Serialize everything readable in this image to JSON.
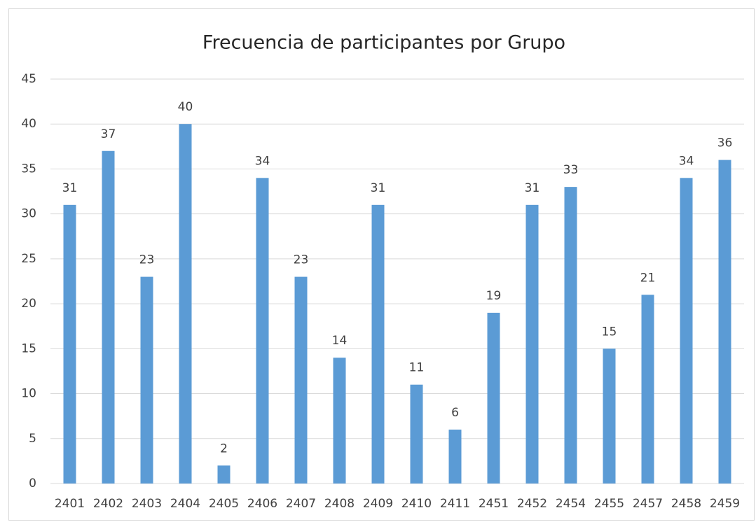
{
  "chart_data": {
    "type": "bar",
    "title": "Frecuencia de participantes por Grupo",
    "categories": [
      "2401",
      "2402",
      "2403",
      "2404",
      "2405",
      "2406",
      "2407",
      "2408",
      "2409",
      "2410",
      "2411",
      "2451",
      "2452",
      "2454",
      "2455",
      "2457",
      "2458",
      "2459"
    ],
    "values": [
      31,
      37,
      23,
      40,
      2,
      34,
      23,
      14,
      31,
      11,
      6,
      19,
      31,
      33,
      15,
      21,
      34,
      36
    ],
    "color": "#5b9bd5",
    "ylim": [
      0,
      45
    ],
    "yticks": [
      0,
      5,
      10,
      15,
      20,
      25,
      30,
      35,
      40,
      45
    ],
    "grid": true
  }
}
